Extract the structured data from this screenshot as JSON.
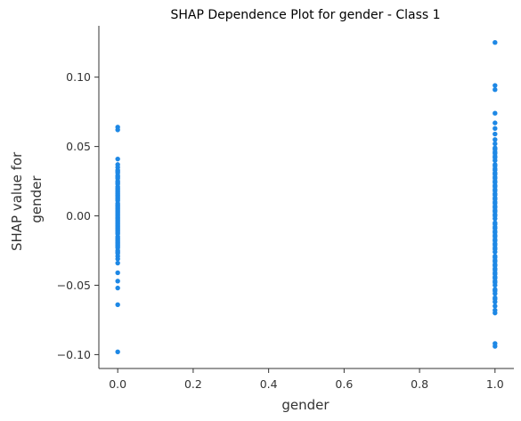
{
  "chart_data": {
    "type": "scatter",
    "title": "SHAP Dependence Plot for gender - Class 1",
    "xlabel": "gender",
    "ylabel_lines": [
      "SHAP value for",
      "gender"
    ],
    "xlim": [
      -0.05,
      1.05
    ],
    "ylim": [
      -0.11,
      0.137
    ],
    "x_ticks": [
      0.0,
      0.2,
      0.4,
      0.6,
      0.8,
      1.0
    ],
    "x_tick_labels": [
      "0.0",
      "0.2",
      "0.4",
      "0.6",
      "0.8",
      "1.0"
    ],
    "y_ticks": [
      -0.1,
      -0.05,
      0.0,
      0.05,
      0.1
    ],
    "y_tick_labels": [
      "−0.10",
      "−0.05",
      "0.00",
      "0.05",
      "0.10"
    ],
    "grid": false,
    "point_color": "#1e88e5",
    "series": [
      {
        "x": [
          0,
          0,
          0,
          0,
          0,
          0,
          0,
          0,
          0,
          0,
          0,
          0,
          0,
          0,
          0,
          0,
          0,
          0,
          0,
          0,
          0,
          0,
          0,
          0,
          0,
          0,
          0,
          0,
          0,
          0,
          0,
          0,
          0,
          0,
          0,
          0,
          0,
          0,
          0,
          0,
          0,
          0,
          0,
          0,
          0,
          0,
          0,
          0,
          0,
          0,
          0,
          0,
          0,
          0,
          0,
          0,
          0,
          0,
          0,
          0,
          0,
          0,
          0,
          0,
          0,
          0,
          0,
          0
        ],
        "y": [
          0.064,
          0.062,
          0.041,
          0.037,
          0.035,
          0.033,
          0.031,
          0.029,
          0.027,
          0.025,
          0.023,
          0.021,
          0.019,
          0.017,
          0.015,
          0.013,
          0.011,
          0.009,
          0.007,
          0.005,
          0.003,
          0.001,
          0.0,
          -0.001,
          -0.003,
          -0.005,
          -0.007,
          -0.009,
          -0.011,
          -0.013,
          -0.015,
          -0.017,
          -0.019,
          -0.021,
          -0.023,
          -0.025,
          -0.027,
          -0.029,
          -0.031,
          -0.034,
          -0.041,
          -0.047,
          -0.052,
          -0.064,
          -0.098,
          0.02,
          0.014,
          0.008,
          0.002,
          -0.002,
          -0.008,
          -0.012,
          -0.018,
          0.028,
          0.024,
          0.018,
          0.012,
          0.006,
          -0.004,
          -0.01,
          -0.016,
          -0.022,
          -0.026,
          0.032,
          0.016,
          0.004,
          -0.006,
          -0.02
        ]
      },
      {
        "x": [
          1,
          1,
          1,
          1,
          1,
          1,
          1,
          1,
          1,
          1,
          1,
          1,
          1,
          1,
          1,
          1,
          1,
          1,
          1,
          1,
          1,
          1,
          1,
          1,
          1,
          1,
          1,
          1,
          1,
          1,
          1,
          1,
          1,
          1,
          1,
          1,
          1,
          1,
          1,
          1,
          1,
          1,
          1,
          1,
          1,
          1,
          1,
          1,
          1,
          1,
          1,
          1,
          1,
          1,
          1,
          1,
          1,
          1,
          1,
          1,
          1,
          1,
          1,
          1,
          1,
          1,
          1,
          1,
          1,
          1,
          1,
          1,
          1,
          1,
          1,
          1,
          1,
          1,
          1,
          1,
          1,
          1,
          1,
          1
        ],
        "y": [
          0.125,
          0.094,
          0.091,
          0.074,
          0.067,
          0.063,
          0.059,
          0.055,
          0.052,
          0.049,
          0.046,
          0.043,
          0.04,
          0.037,
          0.034,
          0.031,
          0.028,
          0.025,
          0.022,
          0.019,
          0.016,
          0.013,
          0.01,
          0.007,
          0.004,
          0.001,
          -0.002,
          -0.005,
          -0.008,
          -0.011,
          -0.014,
          -0.017,
          -0.02,
          -0.023,
          -0.026,
          -0.029,
          -0.032,
          -0.035,
          -0.038,
          -0.041,
          -0.044,
          -0.047,
          -0.05,
          -0.053,
          -0.056,
          -0.059,
          -0.062,
          -0.065,
          -0.068,
          -0.07,
          -0.092,
          -0.094,
          0.048,
          0.042,
          0.036,
          0.03,
          0.024,
          0.018,
          0.012,
          0.006,
          0.0,
          -0.006,
          -0.012,
          -0.018,
          -0.024,
          -0.03,
          -0.036,
          -0.042,
          -0.048,
          -0.054,
          -0.06,
          0.027,
          0.015,
          0.003,
          -0.009,
          -0.021,
          -0.033,
          -0.045,
          0.045,
          0.033,
          0.021,
          0.009,
          -0.015,
          -0.039
        ]
      }
    ]
  }
}
